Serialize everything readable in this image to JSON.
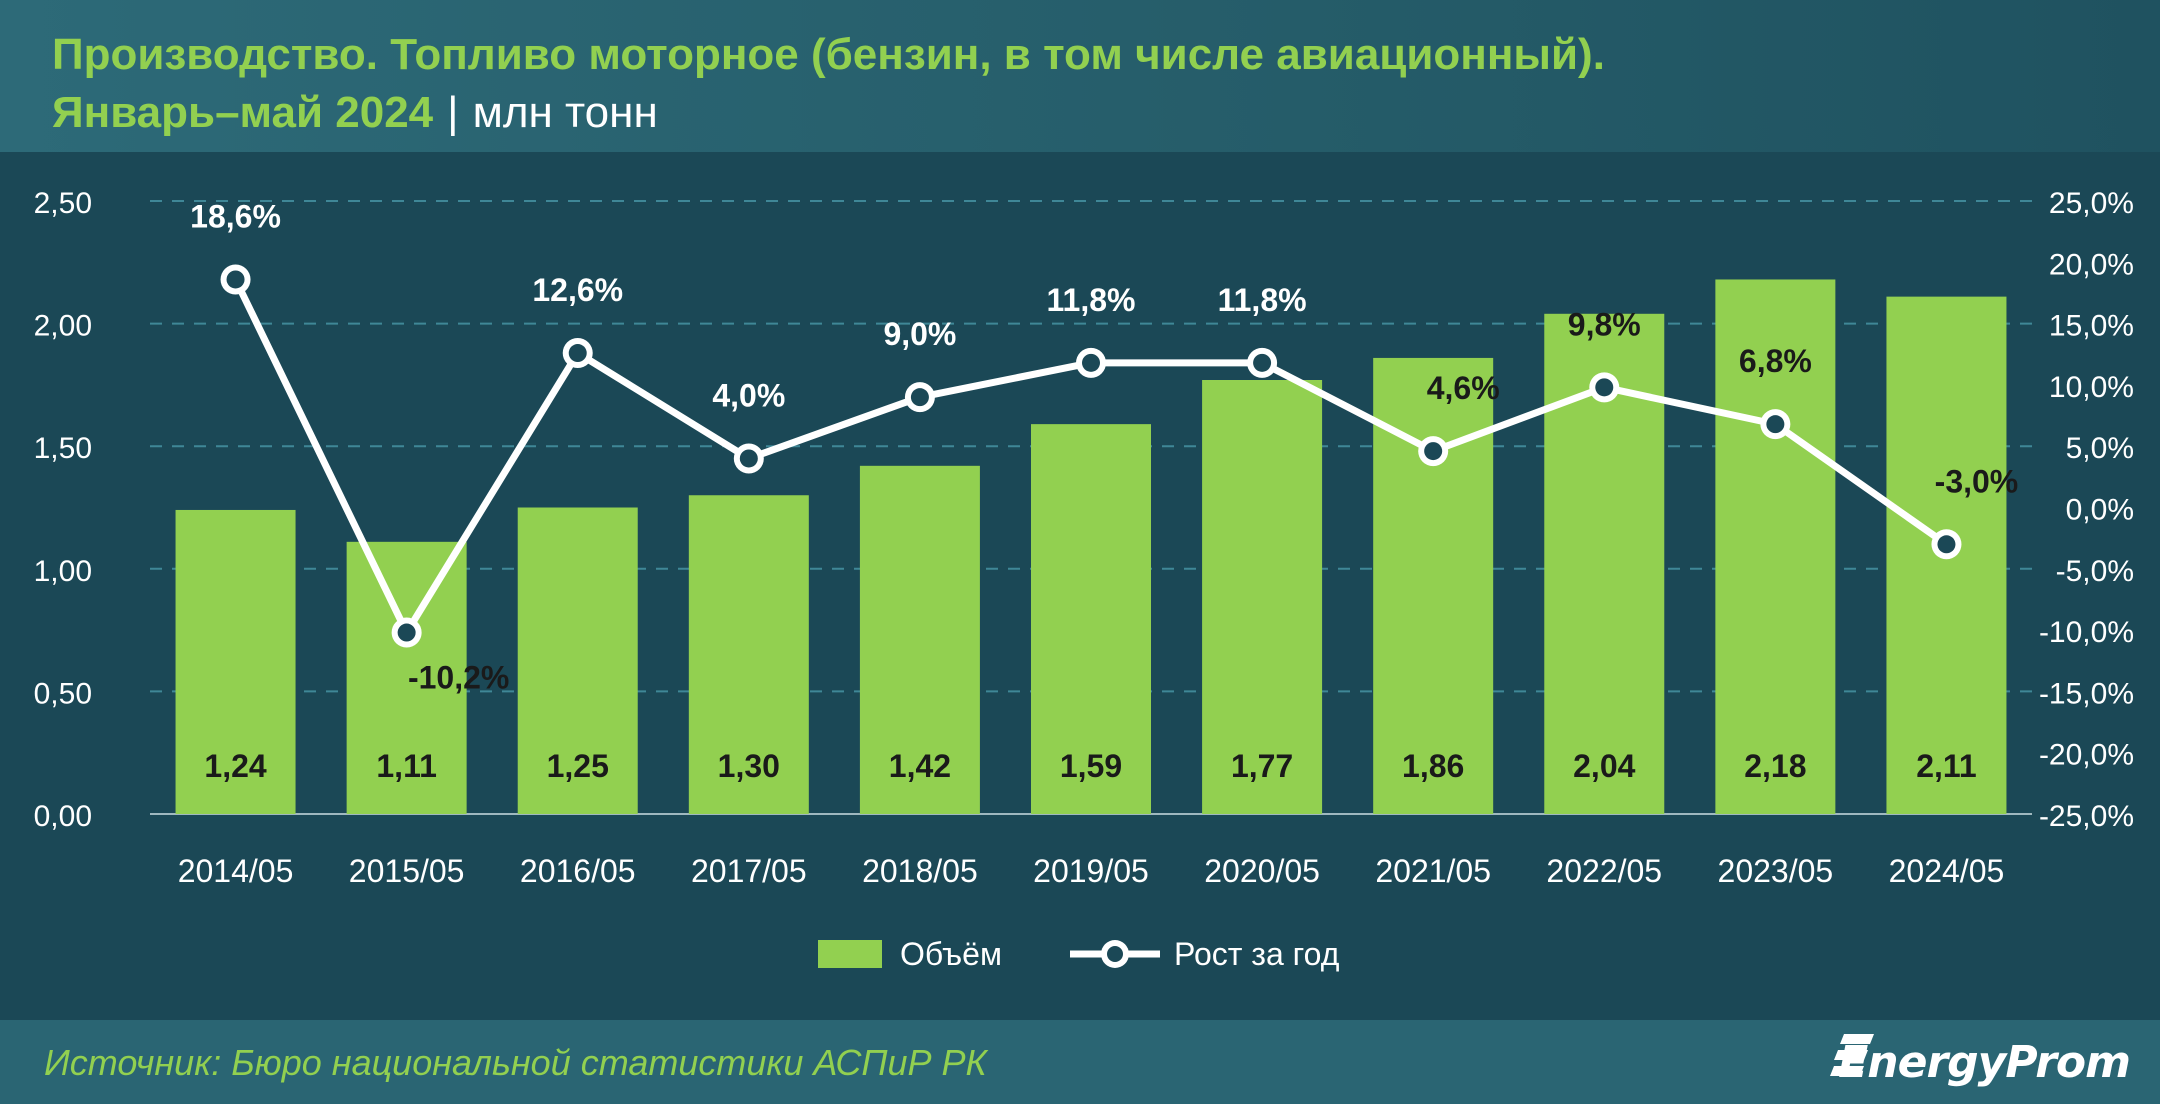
{
  "header": {
    "title_line1": "Производство. Топливо моторное (бензин, в том числе авиационный).",
    "title_period": "Январь–май 2024",
    "title_separator": "|",
    "title_unit": "млн тонн"
  },
  "footer": {
    "source": "Источник: Бюро национальной статистики АСПиР РК",
    "logo_text": "EnergyProm"
  },
  "colors": {
    "bar": "#92d050",
    "line": "#ffffff",
    "background": "#1b4856",
    "gridline": "#3f8797"
  },
  "chart_data": {
    "type": "bar+line",
    "categories": [
      "2014/05",
      "2015/05",
      "2016/05",
      "2017/05",
      "2018/05",
      "2019/05",
      "2020/05",
      "2021/05",
      "2022/05",
      "2023/05",
      "2024/05"
    ],
    "series": [
      {
        "name": "Объём",
        "type": "bar",
        "axis": "left",
        "values": [
          1.24,
          1.11,
          1.25,
          1.3,
          1.42,
          1.59,
          1.77,
          1.86,
          2.04,
          2.18,
          2.11
        ],
        "labels": [
          "1,24",
          "1,11",
          "1,25",
          "1,30",
          "1,42",
          "1,59",
          "1,77",
          "1,86",
          "2,04",
          "2,18",
          "2,11"
        ]
      },
      {
        "name": "Рост за год",
        "type": "line",
        "axis": "right",
        "values": [
          18.6,
          -10.2,
          12.6,
          4.0,
          9.0,
          11.8,
          11.8,
          4.6,
          9.8,
          6.8,
          -3.0
        ],
        "labels": [
          "18,6%",
          "-10,2%",
          "12,6%",
          "4,0%",
          "9,0%",
          "11,8%",
          "11,8%",
          "4,6%",
          "9,8%",
          "6,8%",
          "-3,0%"
        ]
      }
    ],
    "y_left": {
      "range": [
        0,
        2.5
      ],
      "ticks": [
        "0,00",
        "0,50",
        "1,00",
        "1,50",
        "2,00",
        "2,50"
      ]
    },
    "y_right": {
      "range": [
        -25,
        25
      ],
      "ticks": [
        "-25,0%",
        "-20,0%",
        "-15,0%",
        "-10,0%",
        "-5,0%",
        "0,0%",
        "5,0%",
        "10,0%",
        "15,0%",
        "20,0%",
        "25,0%"
      ]
    },
    "grid": true,
    "legend": "bottom-center"
  }
}
